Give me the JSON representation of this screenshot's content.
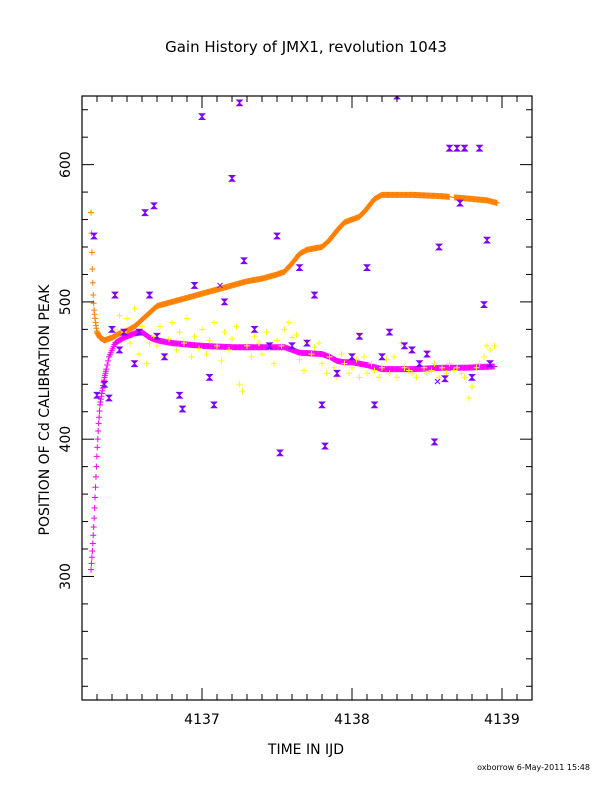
{
  "chart_data": {
    "type": "scatter",
    "title": "Gain History of JMX1, revolution 1043",
    "xlabel": "TIME IN IJD",
    "ylabel": "POSITION OF Cd CALIBRATION PEAK",
    "xlim": [
      4136.2,
      4139.2
    ],
    "ylim": [
      210,
      650
    ],
    "x_ticks": [
      4137,
      4138,
      4139
    ],
    "y_ticks": [
      300,
      400,
      500,
      600
    ],
    "grid": false,
    "footer": "oxborrow  6-May-2011 15:48",
    "colors": {
      "orange": "#ff8000",
      "magenta": "#ff00ff",
      "yellow": "#ffff00",
      "purple": "#8000ff"
    },
    "series": [
      {
        "marker": "plus",
        "color": "#ff8000",
        "curve": [
          [
            4136.26,
            565
          ],
          [
            4136.265,
            540
          ],
          [
            4136.27,
            520
          ],
          [
            4136.275,
            505
          ],
          [
            4136.28,
            495
          ],
          [
            4136.29,
            485
          ],
          [
            4136.3,
            478
          ],
          [
            4136.32,
            474
          ],
          [
            4136.35,
            472
          ],
          [
            4136.4,
            474
          ],
          [
            4136.45,
            477
          ],
          [
            4136.5,
            479
          ],
          [
            4136.55,
            482
          ],
          [
            4136.6,
            487
          ],
          [
            4136.65,
            492
          ],
          [
            4136.7,
            497
          ],
          [
            4136.8,
            500
          ],
          [
            4136.9,
            503
          ],
          [
            4137.0,
            506
          ],
          [
            4137.1,
            509
          ],
          [
            4137.2,
            512
          ],
          [
            4137.3,
            515
          ],
          [
            4137.4,
            517
          ],
          [
            4137.5,
            520
          ],
          [
            4137.55,
            522
          ],
          [
            4137.6,
            528
          ],
          [
            4137.65,
            535
          ],
          [
            4137.7,
            538
          ],
          [
            4137.8,
            540
          ],
          [
            4137.85,
            545
          ],
          [
            4137.9,
            552
          ],
          [
            4137.95,
            558
          ],
          [
            4138.0,
            560
          ],
          [
            4138.05,
            562
          ],
          [
            4138.1,
            568
          ],
          [
            4138.15,
            575
          ],
          [
            4138.2,
            578
          ],
          [
            4138.4,
            578
          ],
          [
            4138.6,
            577
          ],
          [
            4138.7,
            576
          ],
          [
            4138.8,
            575
          ],
          [
            4138.9,
            574
          ],
          [
            4138.97,
            572
          ]
        ],
        "gaps": [
          [
            4138.65,
            4138.68
          ]
        ]
      },
      {
        "marker": "plus",
        "color": "#ff00ff",
        "curve": [
          [
            4136.26,
            305
          ],
          [
            4136.27,
            320
          ],
          [
            4136.28,
            340
          ],
          [
            4136.29,
            365
          ],
          [
            4136.3,
            390
          ],
          [
            4136.31,
            410
          ],
          [
            4136.32,
            425
          ],
          [
            4136.33,
            432
          ],
          [
            4136.35,
            445
          ],
          [
            4136.38,
            460
          ],
          [
            4136.42,
            470
          ],
          [
            4136.48,
            474
          ],
          [
            4136.55,
            477
          ],
          [
            4136.6,
            478
          ],
          [
            4136.65,
            474
          ],
          [
            4136.7,
            472
          ],
          [
            4136.8,
            470
          ],
          [
            4136.9,
            469
          ],
          [
            4137.0,
            468
          ],
          [
            4137.2,
            467
          ],
          [
            4137.4,
            467
          ],
          [
            4137.55,
            467
          ],
          [
            4137.6,
            465
          ],
          [
            4137.65,
            463
          ],
          [
            4137.8,
            462
          ],
          [
            4137.85,
            460
          ],
          [
            4137.9,
            457
          ],
          [
            4137.95,
            456
          ],
          [
            4138.0,
            456
          ],
          [
            4138.1,
            454
          ],
          [
            4138.2,
            451
          ],
          [
            4138.4,
            451
          ],
          [
            4138.6,
            452
          ],
          [
            4138.75,
            452
          ],
          [
            4138.95,
            453
          ]
        ],
        "gaps": []
      },
      {
        "marker": "plus",
        "color": "#ffff00",
        "points": [
          [
            4136.42,
            480
          ],
          [
            4136.45,
            490
          ],
          [
            4136.48,
            478
          ],
          [
            4136.5,
            488
          ],
          [
            4136.52,
            470
          ],
          [
            4136.55,
            495
          ],
          [
            4136.58,
            462
          ],
          [
            4136.6,
            482
          ],
          [
            4136.63,
            455
          ],
          [
            4136.65,
            470
          ],
          [
            4136.68,
            475
          ],
          [
            4136.7,
            468
          ],
          [
            4136.72,
            482
          ],
          [
            4136.75,
            460
          ],
          [
            4136.78,
            473
          ],
          [
            4136.8,
            485
          ],
          [
            4136.83,
            465
          ],
          [
            4136.85,
            478
          ],
          [
            4136.88,
            470
          ],
          [
            4136.9,
            488
          ],
          [
            4136.93,
            460
          ],
          [
            4136.95,
            475
          ],
          [
            4136.98,
            466
          ],
          [
            4137.0,
            480
          ],
          [
            4137.03,
            462
          ],
          [
            4137.05,
            472
          ],
          [
            4137.08,
            485
          ],
          [
            4137.1,
            468
          ],
          [
            4137.13,
            457
          ],
          [
            4137.15,
            478
          ],
          [
            4137.18,
            465
          ],
          [
            4137.2,
            473
          ],
          [
            4137.23,
            482
          ],
          [
            4137.25,
            440
          ],
          [
            4137.27,
            435
          ],
          [
            4137.3,
            468
          ],
          [
            4137.33,
            460
          ],
          [
            4137.35,
            475
          ],
          [
            4137.38,
            470
          ],
          [
            4137.4,
            462
          ],
          [
            4137.43,
            478
          ],
          [
            4137.45,
            466
          ],
          [
            4137.48,
            455
          ],
          [
            4137.5,
            472
          ],
          [
            4137.53,
            468
          ],
          [
            4137.55,
            480
          ],
          [
            4137.58,
            485
          ],
          [
            4137.6,
            474
          ],
          [
            4137.63,
            476
          ],
          [
            4137.65,
            458
          ],
          [
            4137.68,
            450
          ],
          [
            4137.7,
            470
          ],
          [
            4137.73,
            462
          ],
          [
            4137.75,
            467
          ],
          [
            4137.78,
            470
          ],
          [
            4137.8,
            455
          ],
          [
            4137.83,
            448
          ],
          [
            4137.85,
            460
          ],
          [
            4137.88,
            452
          ],
          [
            4137.9,
            445
          ],
          [
            4137.93,
            462
          ],
          [
            4137.95,
            455
          ],
          [
            4137.98,
            448
          ],
          [
            4138.0,
            452
          ],
          [
            4138.03,
            458
          ],
          [
            4138.05,
            445
          ],
          [
            4138.08,
            460
          ],
          [
            4138.1,
            448
          ],
          [
            4138.13,
            455
          ],
          [
            4138.15,
            450
          ],
          [
            4138.18,
            445
          ],
          [
            4138.2,
            452
          ],
          [
            4138.23,
            458
          ],
          [
            4138.25,
            448
          ],
          [
            4138.28,
            460
          ],
          [
            4138.3,
            445
          ],
          [
            4138.33,
            470
          ],
          [
            4138.35,
            452
          ],
          [
            4138.38,
            450
          ],
          [
            4138.4,
            448
          ],
          [
            4138.43,
            445
          ],
          [
            4138.45,
            455
          ],
          [
            4138.48,
            452
          ],
          [
            4138.5,
            448
          ],
          [
            4138.53,
            450
          ],
          [
            4138.55,
            455
          ],
          [
            4138.58,
            445
          ],
          [
            4138.6,
            452
          ],
          [
            4138.63,
            448
          ],
          [
            4138.65,
            455
          ],
          [
            4138.68,
            450
          ],
          [
            4138.7,
            452
          ],
          [
            4138.73,
            448
          ],
          [
            4138.75,
            445
          ],
          [
            4138.78,
            430
          ],
          [
            4138.8,
            438
          ],
          [
            4138.83,
            452
          ],
          [
            4138.85,
            455
          ],
          [
            4138.88,
            460
          ],
          [
            4138.9,
            468
          ],
          [
            4138.92,
            465
          ],
          [
            4138.95,
            468
          ]
        ]
      },
      {
        "marker": "hourglass",
        "color": "#8000ff",
        "points": [
          [
            4136.28,
            548
          ],
          [
            4136.3,
            432
          ],
          [
            4136.35,
            440
          ],
          [
            4136.38,
            430
          ],
          [
            4136.4,
            480
          ],
          [
            4136.42,
            505
          ],
          [
            4136.45,
            465
          ],
          [
            4136.48,
            478
          ],
          [
            4136.55,
            455
          ],
          [
            4136.58,
            478
          ],
          [
            4136.62,
            565
          ],
          [
            4136.65,
            505
          ],
          [
            4136.68,
            570
          ],
          [
            4136.7,
            475
          ],
          [
            4136.75,
            460
          ],
          [
            4136.85,
            432
          ],
          [
            4136.87,
            422
          ],
          [
            4136.95,
            512
          ],
          [
            4137.0,
            635
          ],
          [
            4137.05,
            445
          ],
          [
            4137.08,
            425
          ],
          [
            4137.15,
            500
          ],
          [
            4137.2,
            590
          ],
          [
            4137.25,
            645
          ],
          [
            4137.28,
            530
          ],
          [
            4137.35,
            480
          ],
          [
            4137.45,
            468
          ],
          [
            4137.5,
            548
          ],
          [
            4137.52,
            390
          ],
          [
            4137.6,
            468
          ],
          [
            4137.65,
            525
          ],
          [
            4137.7,
            470
          ],
          [
            4137.75,
            505
          ],
          [
            4137.8,
            425
          ],
          [
            4137.82,
            395
          ],
          [
            4137.9,
            448
          ],
          [
            4138.0,
            460
          ],
          [
            4138.05,
            475
          ],
          [
            4138.1,
            525
          ],
          [
            4138.15,
            425
          ],
          [
            4138.2,
            460
          ],
          [
            4138.25,
            478
          ],
          [
            4138.3,
            650
          ],
          [
            4138.35,
            468
          ],
          [
            4138.4,
            465
          ],
          [
            4138.45,
            455
          ],
          [
            4138.5,
            462
          ],
          [
            4138.55,
            398
          ],
          [
            4138.58,
            540
          ],
          [
            4138.62,
            444
          ],
          [
            4138.65,
            612
          ],
          [
            4138.7,
            612
          ],
          [
            4138.72,
            572
          ],
          [
            4138.75,
            612
          ],
          [
            4138.8,
            445
          ],
          [
            4138.85,
            612
          ],
          [
            4138.88,
            498
          ],
          [
            4138.9,
            545
          ],
          [
            4138.92,
            455
          ]
        ]
      },
      {
        "marker": "cross",
        "color": "#8000ff",
        "points": [
          [
            4137.12,
            512
          ],
          [
            4138.57,
            442
          ],
          [
            4138.75,
            612
          ]
        ]
      }
    ]
  }
}
